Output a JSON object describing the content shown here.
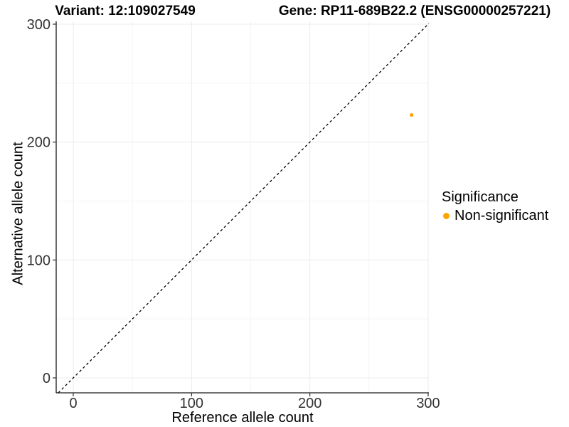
{
  "titles": {
    "left": "Variant: 12:109027549",
    "right": "Gene: RP11-689B22.2 (ENSG00000257221)"
  },
  "axes": {
    "x_label": "Reference allele count",
    "y_label": "Alternative allele count"
  },
  "legend": {
    "title": "Significance",
    "items": [
      {
        "label": "Non-significant",
        "color": "#FFA500"
      }
    ]
  },
  "chart_data": {
    "type": "scatter",
    "title": "Variant: 12:109027549",
    "subtitle": "Gene: RP11-689B22.2 (ENSG00000257221)",
    "xlabel": "Reference allele count",
    "ylabel": "Alternative allele count",
    "xlim": [
      0,
      300
    ],
    "ylim": [
      0,
      300
    ],
    "x_ticks": [
      0,
      100,
      200,
      300
    ],
    "y_ticks": [
      0,
      100,
      200,
      300
    ],
    "x_minor_ticks": [
      50,
      150,
      250
    ],
    "y_minor_ticks": [
      50,
      150,
      250
    ],
    "grid": true,
    "legend_position": "right",
    "series": [
      {
        "name": "Non-significant",
        "color": "#FFA500",
        "marker_radius": 2.6,
        "points": [
          {
            "x": 286,
            "y": 223
          }
        ]
      }
    ],
    "reference_line": {
      "type": "identity",
      "equation": "y = x",
      "style": "dashed",
      "color": "#000000"
    },
    "style": {
      "grid_major_color": "#ebebeb",
      "grid_minor_color": "#f5f5f5",
      "axis_line_color": "#1a1a1a",
      "tick_color": "#333333",
      "tick_label_color": "#333333",
      "tick_label_size": 20
    }
  }
}
